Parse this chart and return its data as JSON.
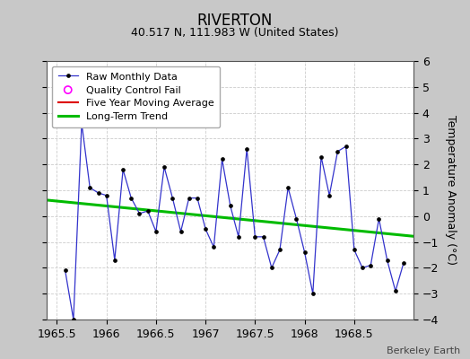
{
  "title": "RIVERTON",
  "subtitle": "40.517 N, 111.983 W (United States)",
  "credit": "Berkeley Earth",
  "ylabel": "Temperature Anomaly (°C)",
  "xlim": [
    1965.4,
    1969.1
  ],
  "ylim": [
    -4,
    6
  ],
  "yticks": [
    -4,
    -3,
    -2,
    -1,
    0,
    1,
    2,
    3,
    4,
    5,
    6
  ],
  "xticks": [
    1965.5,
    1966.0,
    1966.5,
    1967.0,
    1967.5,
    1968.0,
    1968.5
  ],
  "xticklabels": [
    "1965.5",
    "1966",
    "1966.5",
    "1967",
    "1967.5",
    "1968",
    "1968.5"
  ],
  "bg_color": "#c8c8c8",
  "plot_bg": "#ffffff",
  "raw_color": "#3333cc",
  "raw_marker_color": "#000000",
  "trend_color": "#00bb00",
  "mavg_color": "#dd0000",
  "qc_color": "#ff00ff",
  "raw_x": [
    1965.583,
    1965.667,
    1965.75,
    1965.833,
    1965.917,
    1966.0,
    1966.083,
    1966.167,
    1966.25,
    1966.333,
    1966.417,
    1966.5,
    1966.583,
    1966.667,
    1966.75,
    1966.833,
    1966.917,
    1967.0,
    1967.083,
    1967.167,
    1967.25,
    1967.333,
    1967.417,
    1967.5,
    1967.583,
    1967.667,
    1967.75,
    1967.833,
    1967.917,
    1968.0,
    1968.083,
    1968.167,
    1968.25,
    1968.333,
    1968.417,
    1968.5,
    1968.583,
    1968.667,
    1968.75,
    1968.833,
    1968.917,
    1969.0
  ],
  "raw_y": [
    -2.1,
    -4.0,
    3.6,
    1.1,
    0.9,
    0.8,
    -1.7,
    1.8,
    0.7,
    0.1,
    0.2,
    -0.6,
    1.9,
    0.7,
    -0.6,
    0.7,
    0.7,
    -0.5,
    -1.2,
    2.2,
    0.4,
    -0.8,
    2.6,
    -0.8,
    -0.8,
    -2.0,
    -1.3,
    1.1,
    -0.1,
    -1.4,
    -3.0,
    2.3,
    0.8,
    2.5,
    2.7,
    -1.3,
    -2.0,
    -1.9,
    -0.1,
    -1.7,
    -2.9,
    -1.8
  ],
  "trend_x": [
    1965.4,
    1969.1
  ],
  "trend_y": [
    0.62,
    -0.78
  ],
  "title_fontsize": 12,
  "subtitle_fontsize": 9,
  "legend_fontsize": 8,
  "tick_fontsize": 9,
  "ylabel_fontsize": 9,
  "credit_fontsize": 8
}
